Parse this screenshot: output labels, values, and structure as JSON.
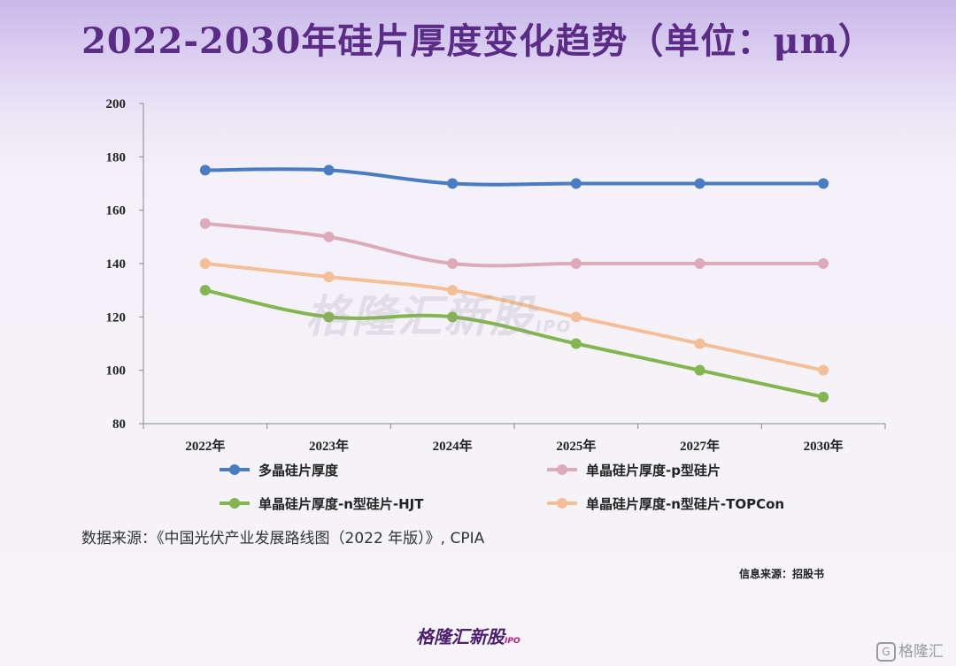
{
  "page": {
    "title": "2022-2030年硅片厚度变化趋势（单位：μm）",
    "source_note": "数据来源：《中国光伏产业发展路线图（2022 年版）》, CPIA",
    "info_source": "信息来源：招股书",
    "watermark": "格隆汇新股",
    "watermark_ipo": "IPO",
    "brand": "格隆汇新股",
    "brand_ipo": "IPO",
    "corner_logo": "格隆汇",
    "corner_logo_glyph": "G"
  },
  "chart_data": {
    "type": "line",
    "title": "2022-2030年硅片厚度变化趋势（单位：μm）",
    "xlabel": "",
    "ylabel": "",
    "categories": [
      "2022年",
      "2023年",
      "2024年",
      "2025年",
      "2027年",
      "2030年"
    ],
    "ylim": [
      80,
      200
    ],
    "yticks": [
      80,
      100,
      120,
      140,
      160,
      180,
      200
    ],
    "grid": false,
    "legend_position": "bottom",
    "series": [
      {
        "name": "多晶硅片厚度",
        "values": [
          175,
          175,
          170,
          170,
          170,
          170
        ],
        "color": "#4a7cc4"
      },
      {
        "name": "单晶硅片厚度-p型硅片",
        "values": [
          155,
          150,
          140,
          140,
          140,
          140
        ],
        "color": "#dcaab8"
      },
      {
        "name": "单晶硅片厚度-n型硅片-HJT",
        "values": [
          130,
          120,
          120,
          110,
          100,
          90
        ],
        "color": "#83b550"
      },
      {
        "name": "单晶硅片厚度-n型硅片-TOPCon",
        "values": [
          140,
          135,
          130,
          120,
          110,
          100
        ],
        "color": "#f4bf98"
      }
    ]
  }
}
